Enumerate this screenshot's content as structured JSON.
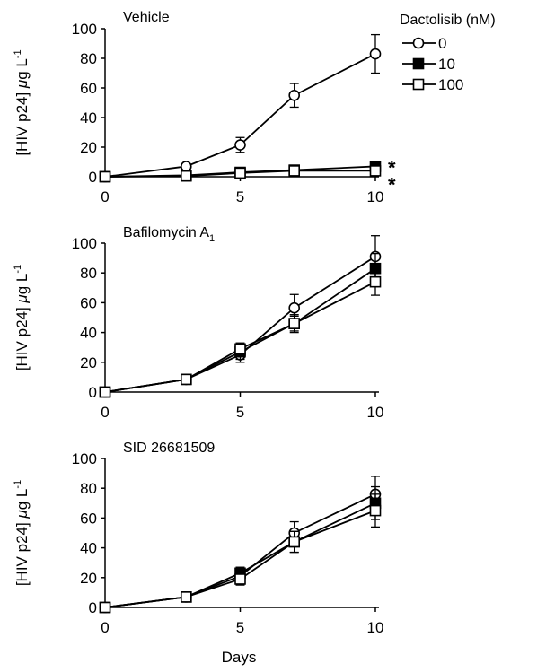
{
  "legend": {
    "title": "Dactolisib (nM)",
    "items": [
      {
        "label": "0",
        "marker": "open-circle"
      },
      {
        "label": "10",
        "marker": "filled-square"
      },
      {
        "label": "100",
        "marker": "open-square"
      }
    ]
  },
  "shared": {
    "ylabel": "[HIV p24]",
    "ylabel_unit_mu": "μ",
    "ylabel_unit_g": "g L",
    "ylabel_unit_exp": "-1",
    "xlabel": "Days"
  },
  "colors": {
    "line": "#000000",
    "open_marker_fill": "#ffffff",
    "filled_marker_fill": "#000000"
  },
  "chart_data": [
    {
      "type": "line",
      "title": "Vehicle",
      "x": [
        0,
        3,
        5,
        7,
        10
      ],
      "xticks": [
        0,
        5,
        10
      ],
      "xlim": [
        0,
        10
      ],
      "ylim": [
        0,
        100
      ],
      "yticks": [
        0,
        20,
        40,
        60,
        80,
        100
      ],
      "annotations": [
        "*",
        "*"
      ],
      "series": [
        {
          "name": "0",
          "values": [
            0,
            7,
            21.5,
            55,
            83
          ],
          "errors": [
            0,
            1.5,
            5,
            8,
            13
          ]
        },
        {
          "name": "10",
          "values": [
            0,
            1,
            3,
            4.5,
            7
          ],
          "errors": [
            0,
            0.5,
            1,
            1,
            1
          ]
        },
        {
          "name": "100",
          "values": [
            0,
            0.5,
            2.5,
            4,
            4
          ],
          "errors": [
            0,
            0.5,
            1,
            1,
            1
          ]
        }
      ]
    },
    {
      "type": "line",
      "title": "Bafilomycin A",
      "title_subscript": "1",
      "x": [
        0,
        3,
        5,
        7,
        10
      ],
      "xticks": [
        0,
        5,
        10
      ],
      "xlim": [
        0,
        10
      ],
      "ylim": [
        0,
        100
      ],
      "yticks": [
        0,
        20,
        40,
        60,
        80,
        100
      ],
      "series": [
        {
          "name": "0",
          "values": [
            0,
            8.5,
            25,
            56.5,
            91
          ],
          "errors": [
            0,
            1.5,
            5,
            9,
            14
          ]
        },
        {
          "name": "10",
          "values": [
            0,
            8.5,
            27,
            46,
            83
          ],
          "errors": [
            0,
            1.5,
            5,
            5,
            10
          ]
        },
        {
          "name": "100",
          "values": [
            0,
            8.5,
            29,
            46,
            74
          ],
          "errors": [
            0,
            1.5,
            4,
            6,
            9
          ]
        }
      ]
    },
    {
      "type": "line",
      "title": "SID 26681509",
      "x": [
        0,
        3,
        5,
        7,
        10
      ],
      "xticks": [
        0,
        5,
        10
      ],
      "xlim": [
        0,
        10
      ],
      "ylim": [
        0,
        100
      ],
      "yticks": [
        0,
        20,
        40,
        60,
        80,
        100
      ],
      "series": [
        {
          "name": "0",
          "values": [
            0,
            7,
            21,
            50,
            76
          ],
          "errors": [
            0,
            1,
            5,
            7.5,
            12
          ]
        },
        {
          "name": "10",
          "values": [
            0,
            7,
            23,
            44,
            70
          ],
          "errors": [
            0,
            1,
            4,
            7,
            11
          ]
        },
        {
          "name": "100",
          "values": [
            0,
            7,
            19,
            44,
            65
          ],
          "errors": [
            0,
            1,
            4,
            7,
            11
          ]
        }
      ]
    }
  ]
}
